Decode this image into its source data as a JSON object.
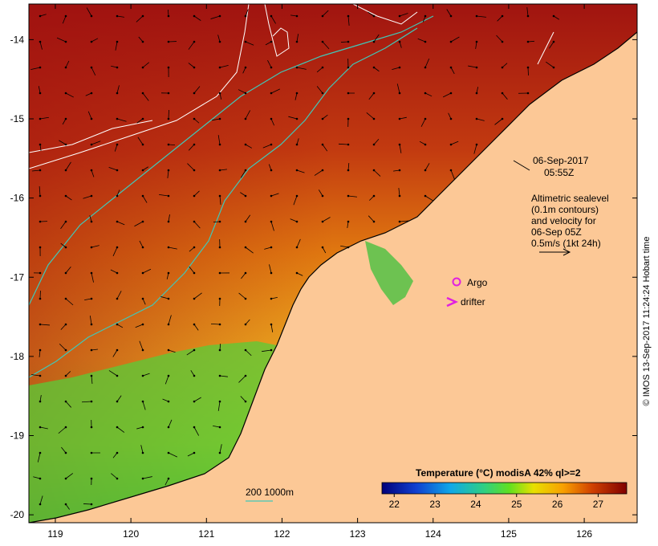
{
  "map": {
    "date_label": "06-Sep-2017",
    "time_label": "05:55Z",
    "altimetry_legend": [
      "Altimetric sealevel",
      "(0.1m contours)",
      "and velocity for",
      "06-Sep 05Z",
      "0.5m/s (1kt 24h)"
    ],
    "argo_label": "Argo",
    "drifter_label": "drifter",
    "depth_legend": "200  1000m",
    "credit": "© IMOS 13-Sep-2017 11:24:24 Hobart time",
    "colorbar": {
      "title": "Temperature (°C) modisA 42% ql>=2",
      "ticks": [
        "22",
        "23",
        "24",
        "25",
        "26",
        "27"
      ],
      "range": [
        21.7,
        27.7
      ]
    },
    "lon_ticks": [
      "119",
      "120",
      "121",
      "122",
      "123",
      "124",
      "125",
      "126"
    ],
    "lat_ticks": [
      "-14",
      "-15",
      "-16",
      "-17",
      "-18",
      "-19",
      "-20"
    ],
    "lon_range": [
      118.65,
      126.7
    ],
    "lat_range": [
      -13.55,
      -20.1
    ],
    "colors": {
      "land": "#fcc896",
      "warm": "#a01010",
      "mid": "#e07a10",
      "cool": "#f0c020",
      "green": "#3cc83c",
      "contour_white": "#ffffff",
      "isobath": "#40c8b8",
      "argo": "#e020e0",
      "drifter": "#e020e0"
    }
  }
}
